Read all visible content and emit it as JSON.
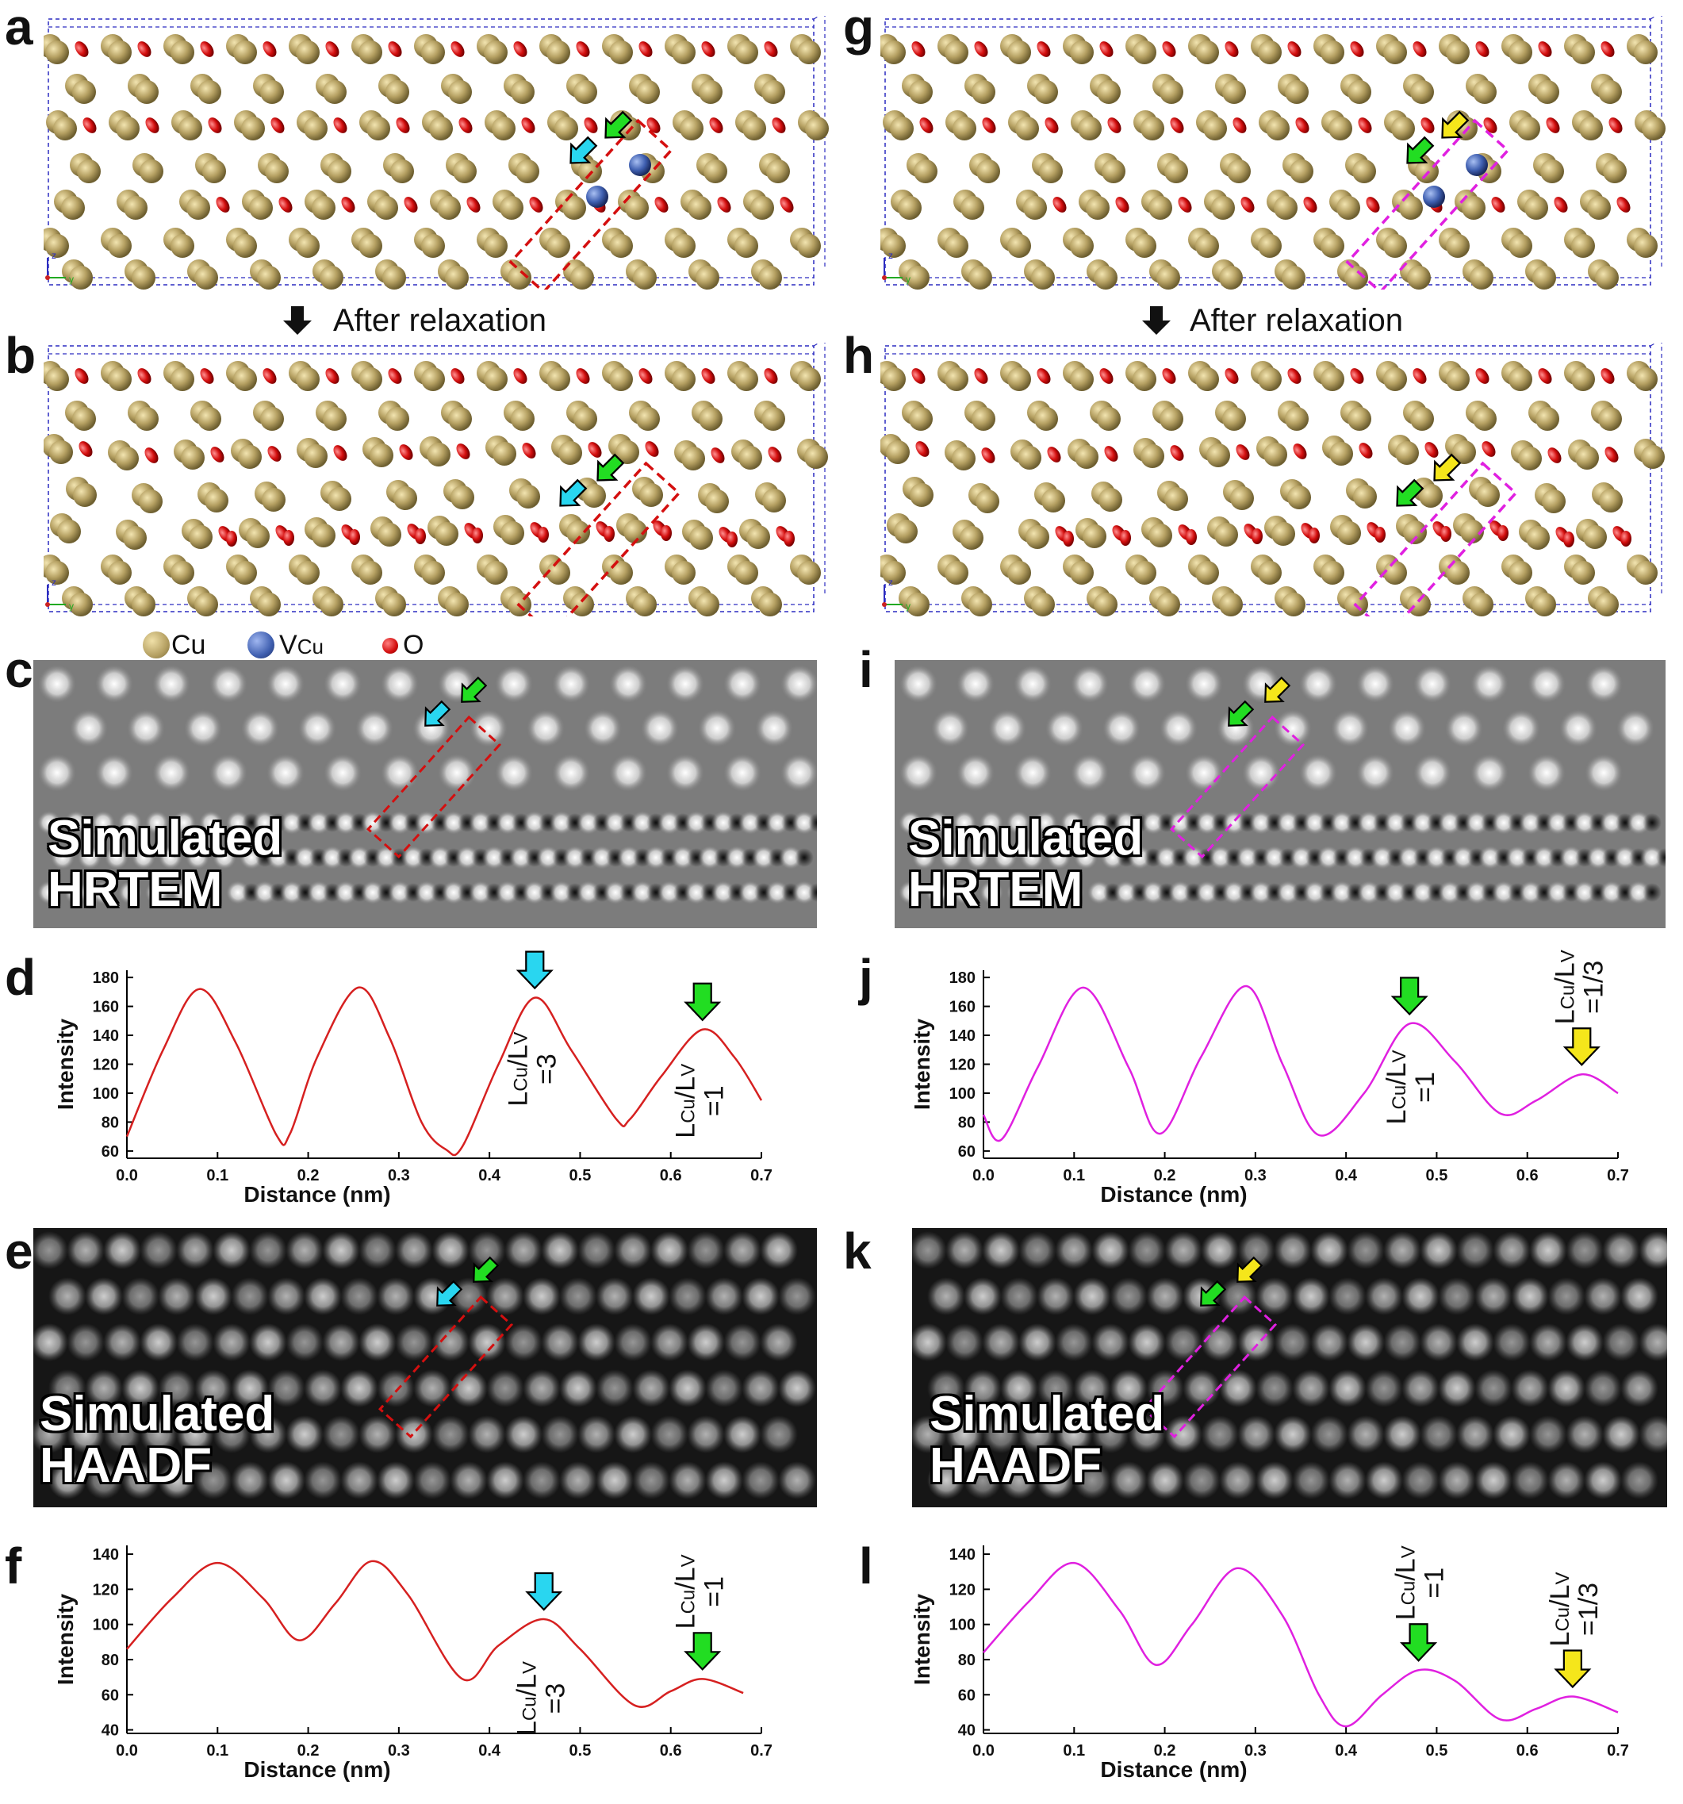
{
  "panels": {
    "a": "a",
    "b": "b",
    "c": "c",
    "d": "d",
    "e": "e",
    "f": "f",
    "g": "g",
    "h": "h",
    "i": "i",
    "j": "j",
    "k": "k",
    "l": "l"
  },
  "relaxation_label": "After relaxation",
  "legend": {
    "cu": "Cu",
    "vcu_main": "V",
    "vcu_sub": "Cu",
    "o": "O"
  },
  "colors": {
    "cu": "#b5a062",
    "vcu": "#3f5fb0",
    "o": "#d40f0f",
    "red_curve": "#d62020",
    "magenta_curve": "#e020e0",
    "cyan_arrow": "#29d6f0",
    "green_arrow": "#22dd22",
    "yellow_arrow": "#f5e61b"
  },
  "sim_labels": {
    "hrtem_1": "Simulated",
    "hrtem_2": "HRTEM",
    "haadf_1": "Simulated",
    "haadf_2": "HAADF"
  },
  "ratio_labels": {
    "r3": "=3",
    "r1": "=1",
    "r13": "=1/3",
    "lcu_main": "L",
    "lcu_sub": "Cu",
    "lv_sep": "/L",
    "lv_sub": "V"
  },
  "axes": {
    "z": "z",
    "y": "y"
  },
  "chart_data": [
    {
      "id": "d",
      "type": "line",
      "xlabel": "Distance (nm)",
      "ylabel": "Intensity",
      "xlim": [
        0,
        0.7
      ],
      "ylim": [
        55,
        185
      ],
      "xticks": [
        0.0,
        0.1,
        0.2,
        0.3,
        0.4,
        0.5,
        0.6,
        0.7
      ],
      "yticks": [
        60,
        80,
        100,
        120,
        140,
        160,
        180
      ],
      "x": [
        0.0,
        0.04,
        0.08,
        0.12,
        0.165,
        0.18,
        0.21,
        0.255,
        0.29,
        0.325,
        0.352,
        0.37,
        0.41,
        0.45,
        0.49,
        0.54,
        0.555,
        0.59,
        0.635,
        0.67,
        0.7
      ],
      "y": [
        70,
        130,
        172,
        135,
        71,
        72,
        125,
        173,
        138,
        80,
        61,
        63,
        120,
        166,
        130,
        82,
        82,
        112,
        144,
        125,
        95
      ],
      "markers": [
        {
          "x": 0.45,
          "y": 166,
          "color": "cyan",
          "label": "=3"
        },
        {
          "x": 0.635,
          "y": 144,
          "color": "green",
          "label": "=1"
        }
      ]
    },
    {
      "id": "f",
      "type": "line",
      "xlabel": "Distance (nm)",
      "ylabel": "Intensity",
      "xlim": [
        0,
        0.7
      ],
      "ylim": [
        38,
        145
      ],
      "xticks": [
        0.0,
        0.1,
        0.2,
        0.3,
        0.4,
        0.5,
        0.6,
        0.7
      ],
      "yticks": [
        40,
        60,
        80,
        100,
        120,
        140
      ],
      "x": [
        0.0,
        0.05,
        0.1,
        0.15,
        0.19,
        0.23,
        0.27,
        0.31,
        0.37,
        0.41,
        0.46,
        0.5,
        0.56,
        0.6,
        0.635,
        0.68
      ],
      "y": [
        86,
        115,
        135,
        115,
        91,
        112,
        136,
        117,
        69,
        88,
        103,
        86,
        54,
        62,
        69,
        61
      ],
      "markers": [
        {
          "x": 0.46,
          "y": 103,
          "color": "cyan",
          "label": "=3"
        },
        {
          "x": 0.635,
          "y": 69,
          "color": "green",
          "label": "=1"
        }
      ]
    },
    {
      "id": "j",
      "type": "line",
      "xlabel": "Distance (nm)",
      "ylabel": "Intensity",
      "xlim": [
        0,
        0.7
      ],
      "ylim": [
        55,
        185
      ],
      "xticks": [
        0.0,
        0.1,
        0.2,
        0.3,
        0.4,
        0.5,
        0.6,
        0.7
      ],
      "yticks": [
        60,
        80,
        100,
        120,
        140,
        160,
        180
      ],
      "x": [
        0.0,
        0.02,
        0.06,
        0.11,
        0.16,
        0.195,
        0.24,
        0.29,
        0.33,
        0.37,
        0.42,
        0.47,
        0.52,
        0.57,
        0.61,
        0.66,
        0.7
      ],
      "y": [
        85,
        68,
        118,
        173,
        118,
        72,
        125,
        174,
        120,
        71,
        100,
        148,
        122,
        86,
        95,
        113,
        100
      ],
      "markers": [
        {
          "x": 0.47,
          "y": 148,
          "color": "green",
          "label": "=1"
        },
        {
          "x": 0.66,
          "y": 113,
          "color": "yellow",
          "label": "=1/3"
        }
      ]
    },
    {
      "id": "l",
      "type": "line",
      "xlabel": "Distance (nm)",
      "ylabel": "Intensity",
      "xlim": [
        0,
        0.7
      ],
      "ylim": [
        38,
        145
      ],
      "xticks": [
        0.0,
        0.1,
        0.2,
        0.3,
        0.4,
        0.5,
        0.6,
        0.7
      ],
      "yticks": [
        40,
        60,
        80,
        100,
        120,
        140
      ],
      "x": [
        0.0,
        0.05,
        0.1,
        0.15,
        0.19,
        0.23,
        0.28,
        0.33,
        0.37,
        0.4,
        0.44,
        0.48,
        0.52,
        0.57,
        0.61,
        0.65,
        0.7
      ],
      "y": [
        84,
        113,
        135,
        108,
        77,
        100,
        132,
        105,
        60,
        42,
        60,
        74,
        68,
        46,
        52,
        59,
        50
      ],
      "markers": [
        {
          "x": 0.48,
          "y": 74,
          "color": "green",
          "label": "=1"
        },
        {
          "x": 0.65,
          "y": 59,
          "color": "yellow",
          "label": "=1/3"
        }
      ]
    }
  ]
}
